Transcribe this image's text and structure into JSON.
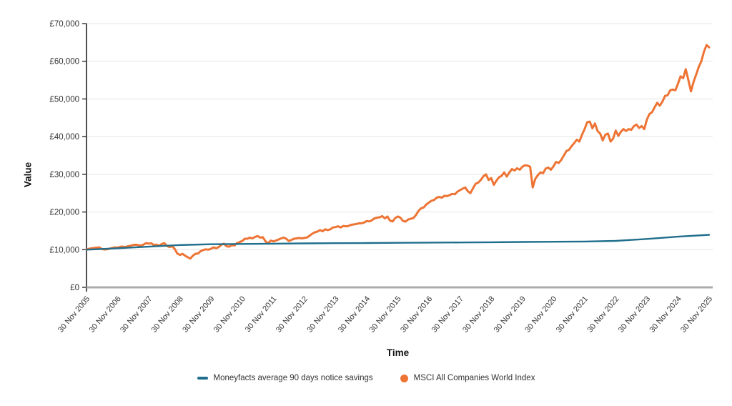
{
  "chart_data": {
    "type": "line",
    "title": "",
    "xlabel": "Time",
    "ylabel": "Value",
    "grid": "horizontal",
    "legend_position": "bottom-center",
    "ylim": [
      0,
      70000
    ],
    "y_tick_step": 10000,
    "y_tick_labels": [
      "£0",
      "£10,000",
      "£20,000",
      "£30,000",
      "£40,000",
      "£50,000",
      "£60,000",
      "£70,000"
    ],
    "x_tick_labels": [
      "30 Nov 2005",
      "30 Nov 2006",
      "30 Nov 2007",
      "30 Nov 2008",
      "30 Nov 2009",
      "30 Nov 2010",
      "30 Nov 2011",
      "30 Nov 2012",
      "30 Nov 2013",
      "30 Nov 2014",
      "30 Nov 2015",
      "30 Nov 2016",
      "30 Nov 2017",
      "30 Nov 2018",
      "30 Nov 2019",
      "30 Nov 2020",
      "30 Nov 2021",
      "30 Nov 2022",
      "30 Nov 2023",
      "30 Nov 2024",
      "30 Nov 2025"
    ],
    "series": [
      {
        "name": "Moneyfacts average 90 days notice savings",
        "color": "#1f6e8c",
        "marker": "dash",
        "points_per_year": 1,
        "values": [
          10000,
          10380,
          10800,
          11230,
          11430,
          11520,
          11600,
          11670,
          11720,
          11770,
          11820,
          11870,
          11910,
          11970,
          12040,
          12110,
          12160,
          12340,
          12850,
          13450,
          13950
        ]
      },
      {
        "name": "MSCI All Companies World Index",
        "color": "#ed7434",
        "marker": "circle",
        "points_per_year": 12,
        "values": [
          10000,
          10250,
          10350,
          10450,
          10550,
          10600,
          10150,
          10050,
          10100,
          10300,
          10450,
          10600,
          10550,
          10750,
          10800,
          10700,
          10900,
          11050,
          11250,
          11300,
          11200,
          11100,
          11350,
          11750,
          11600,
          11700,
          11200,
          11350,
          11050,
          11500,
          11750,
          11000,
          10700,
          10900,
          10200,
          9000,
          8600,
          8900,
          8400,
          8000,
          7650,
          8400,
          8900,
          9000,
          9600,
          9900,
          10100,
          10000,
          10250,
          10600,
          10400,
          10700,
          11300,
          11600,
          10900,
          10800,
          11200,
          11100,
          11700,
          12000,
          12300,
          12900,
          12900,
          13200,
          13000,
          13400,
          13600,
          13200,
          13300,
          12200,
          11700,
          12400,
          12200,
          12400,
          12700,
          13000,
          13200,
          12900,
          12300,
          12600,
          12900,
          13000,
          13100,
          13000,
          13100,
          13250,
          13700,
          14200,
          14600,
          14800,
          15200,
          14900,
          15400,
          15200,
          15400,
          15900,
          16000,
          16200,
          15900,
          16300,
          16200,
          16300,
          16600,
          16700,
          16800,
          17000,
          17000,
          17200,
          17600,
          17500,
          17800,
          18300,
          18500,
          18600,
          18900,
          18300,
          18800,
          17700,
          17500,
          18400,
          18800,
          18500,
          17600,
          17450,
          18000,
          18200,
          18400,
          19200,
          20300,
          21000,
          21200,
          22000,
          22500,
          23000,
          23200,
          23800,
          24000,
          23800,
          24300,
          24200,
          24500,
          24800,
          24700,
          25400,
          25800,
          26200,
          26500,
          25500,
          25000,
          26300,
          27500,
          27800,
          28500,
          29500,
          30000,
          28500,
          29000,
          27200,
          28300,
          29200,
          29600,
          30500,
          29400,
          30500,
          31400,
          31000,
          31600,
          31200,
          32000,
          32400,
          32300,
          32000,
          26500,
          28800,
          29800,
          30500,
          30300,
          31500,
          31800,
          31200,
          32100,
          33300,
          33000,
          33800,
          35000,
          36200,
          36500,
          37500,
          38300,
          39200,
          38700,
          40500,
          42000,
          43800,
          44000,
          42200,
          43500,
          41500,
          40800,
          39000,
          40500,
          40800,
          38700,
          39500,
          41600,
          40200,
          41300,
          42000,
          41500,
          42000,
          41800,
          42800,
          43200,
          42300,
          42800,
          42000,
          44500,
          46000,
          46500,
          47800,
          49000,
          48200,
          49300,
          50800,
          51000,
          52300,
          52500,
          52300,
          54000,
          56000,
          55500,
          57900,
          55000,
          52000,
          54500,
          56500,
          58500,
          60000,
          62500,
          64300,
          63700
        ]
      }
    ]
  },
  "legend": {
    "savings_label": "Moneyfacts average 90 days notice savings",
    "msci_label": "MSCI All Companies World Index"
  }
}
